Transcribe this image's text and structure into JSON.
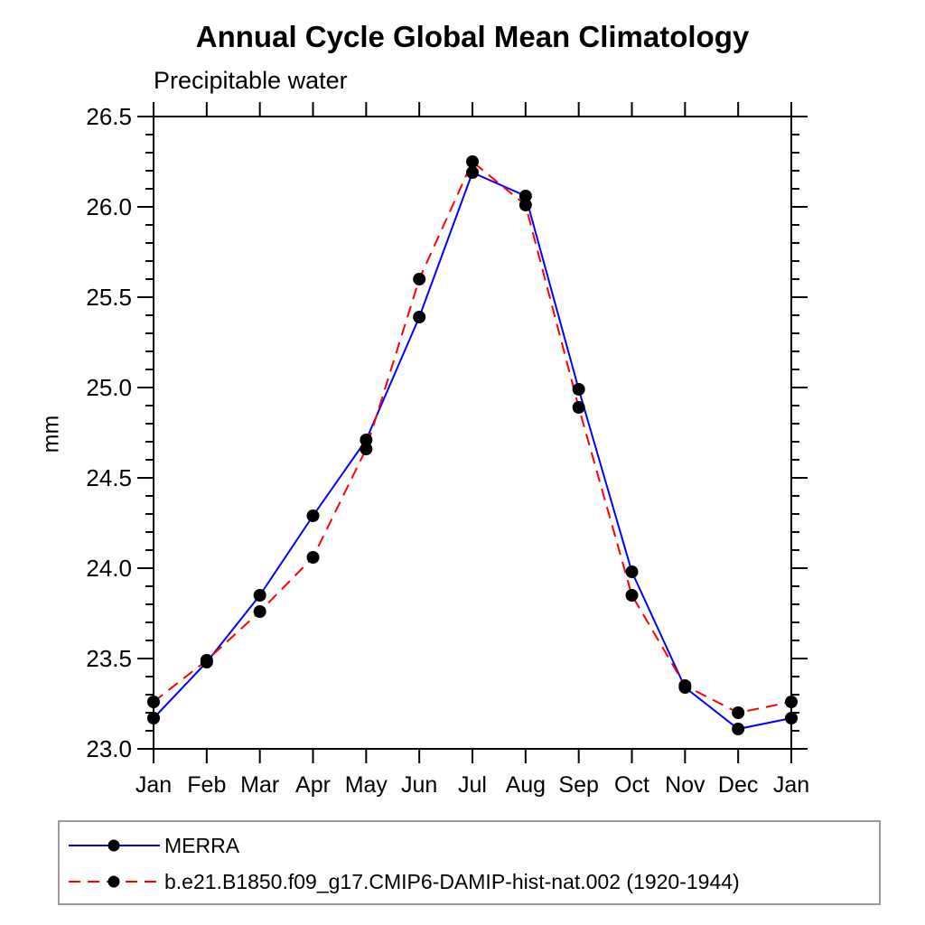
{
  "chart_data": {
    "type": "line",
    "title": "Annual Cycle Global Mean Climatology",
    "subtitle": "Precipitable water",
    "ylabel": "mm",
    "xlabel": "",
    "categories": [
      "Jan",
      "Feb",
      "Mar",
      "Apr",
      "May",
      "Jun",
      "Jul",
      "Aug",
      "Sep",
      "Oct",
      "Nov",
      "Dec",
      "Jan"
    ],
    "ylim": [
      23.0,
      26.5
    ],
    "ytick_major": [
      23.0,
      23.5,
      24.0,
      24.5,
      25.0,
      25.5,
      26.0,
      26.5
    ],
    "ytick_labels": [
      "23.0",
      "23.5",
      "24.0",
      "24.5",
      "25.0",
      "25.5",
      "26.0",
      "26.5"
    ],
    "ytick_minor_step": 0.1,
    "grid": "off",
    "legend_position": "bottom-left-box",
    "marker": {
      "shape": "circle",
      "color": "#000000",
      "radius": 7
    },
    "series": [
      {
        "name": "MERRA",
        "color": "#0000ff",
        "line_style": "solid",
        "values": [
          23.17,
          23.48,
          23.85,
          24.29,
          24.71,
          25.39,
          26.19,
          26.06,
          24.99,
          23.98,
          23.34,
          23.11,
          23.17
        ]
      },
      {
        "name": "b.e21.B1850.f09_g17.CMIP6-DAMIP-hist-nat.002 (1920-1944)",
        "color": "#ff0000",
        "line_style": "dashed",
        "values": [
          23.26,
          23.49,
          23.76,
          24.06,
          24.66,
          25.6,
          26.25,
          26.01,
          24.89,
          23.85,
          23.35,
          23.2,
          23.26
        ]
      }
    ],
    "axis_color": "#000000"
  }
}
